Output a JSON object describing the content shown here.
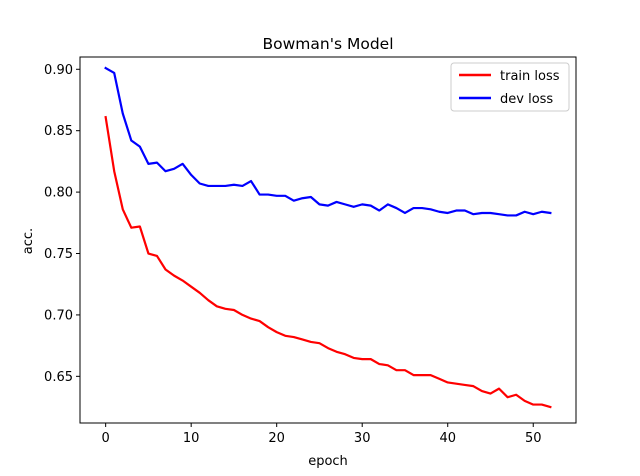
{
  "chart_data": {
    "type": "line",
    "title": "Bowman's Model",
    "xlabel": "epoch",
    "ylabel": "acc.",
    "xlim": [
      -3,
      55
    ],
    "ylim": [
      0.612,
      0.91
    ],
    "xticks": [
      0,
      10,
      20,
      30,
      40,
      50
    ],
    "yticks": [
      0.65,
      0.7,
      0.75,
      0.8,
      0.85,
      0.9
    ],
    "ytick_labels": [
      "0.65",
      "0.70",
      "0.75",
      "0.80",
      "0.85",
      "0.90"
    ],
    "grid": false,
    "legend_position": "top-right",
    "x": [
      0,
      1,
      2,
      3,
      4,
      5,
      6,
      7,
      8,
      9,
      10,
      11,
      12,
      13,
      14,
      15,
      16,
      17,
      18,
      19,
      20,
      21,
      22,
      23,
      24,
      25,
      26,
      27,
      28,
      29,
      30,
      31,
      32,
      33,
      34,
      35,
      36,
      37,
      38,
      39,
      40,
      41,
      42,
      43,
      44,
      45,
      46,
      47,
      48,
      49,
      50,
      51,
      52
    ],
    "series": [
      {
        "name": "train loss",
        "color": "#ff0000",
        "values": [
          0.861,
          0.817,
          0.786,
          0.771,
          0.772,
          0.75,
          0.748,
          0.737,
          0.732,
          0.728,
          0.723,
          0.718,
          0.712,
          0.707,
          0.705,
          0.704,
          0.7,
          0.697,
          0.695,
          0.69,
          0.686,
          0.683,
          0.682,
          0.68,
          0.678,
          0.677,
          0.673,
          0.67,
          0.668,
          0.665,
          0.664,
          0.664,
          0.66,
          0.659,
          0.655,
          0.655,
          0.651,
          0.651,
          0.651,
          0.648,
          0.645,
          0.644,
          0.643,
          0.642,
          0.638,
          0.636,
          0.64,
          0.633,
          0.635,
          0.63,
          0.627,
          0.627,
          0.625
        ]
      },
      {
        "name": "dev loss",
        "color": "#0000ff",
        "values": [
          0.901,
          0.897,
          0.864,
          0.842,
          0.837,
          0.823,
          0.824,
          0.817,
          0.819,
          0.823,
          0.814,
          0.807,
          0.805,
          0.805,
          0.805,
          0.806,
          0.805,
          0.809,
          0.798,
          0.798,
          0.797,
          0.797,
          0.793,
          0.795,
          0.796,
          0.79,
          0.789,
          0.792,
          0.79,
          0.788,
          0.79,
          0.789,
          0.785,
          0.79,
          0.787,
          0.783,
          0.787,
          0.787,
          0.786,
          0.784,
          0.783,
          0.785,
          0.785,
          0.782,
          0.783,
          0.783,
          0.782,
          0.781,
          0.781,
          0.784,
          0.782,
          0.784,
          0.783
        ]
      }
    ]
  }
}
